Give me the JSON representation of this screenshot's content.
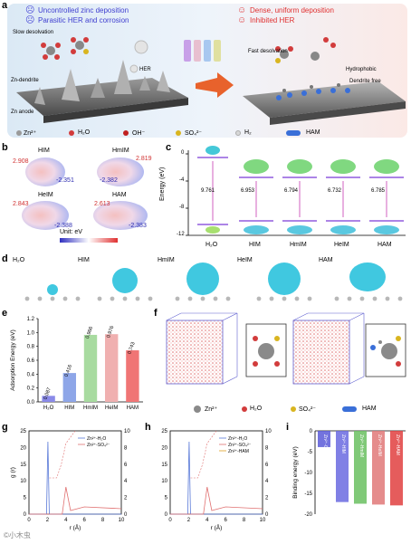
{
  "panel_labels": [
    "a",
    "b",
    "c",
    "d",
    "e",
    "f",
    "g",
    "h",
    "i"
  ],
  "panel_a": {
    "left_items": [
      "Uncontrolled zinc deposition",
      "Parasitic HER and corrosion"
    ],
    "right_items": [
      "Dense, uniform deposition",
      "Inhibited HER"
    ],
    "labels": {
      "slow": "Slow desolvation",
      "her": "HER",
      "dendrite": "Zn-dendrite",
      "anode": "Zn anode",
      "fast": "Fast desolvation",
      "hydrophobic": "Hydrophobic",
      "dendrite_free": "Dendrite free"
    },
    "legend": [
      {
        "label": "Zn²⁺",
        "color": "#9a9a9a"
      },
      {
        "label": "H₂O",
        "color": "#d23c3c"
      },
      {
        "label": "OH⁻",
        "color": "#c02020"
      },
      {
        "label": "SO₄²⁻",
        "color": "#d9b520"
      },
      {
        "label": "H₂",
        "color": "#d8d8d8"
      },
      {
        "label": "HAM",
        "color": "#3a6fd8"
      }
    ]
  },
  "panel_b": {
    "molecules": [
      {
        "name": "HIM",
        "pos": "2.908",
        "neg": "-2.351"
      },
      {
        "name": "HmIM",
        "pos": "2.819",
        "neg": "-2.382"
      },
      {
        "name": "HeIM",
        "pos": "2.843",
        "neg": "-2.388"
      },
      {
        "name": "HAM",
        "pos": "2.613",
        "neg": "-2.383"
      }
    ],
    "unit": "Unit: eV"
  },
  "panel_c": {
    "ylabel": "Energy (eV)",
    "yticks": [
      "0",
      "-4",
      "-8",
      "-12"
    ],
    "molecules": [
      "H₂O",
      "HIM",
      "HmIM",
      "HeIM",
      "HAM"
    ],
    "gaps": [
      "9.761",
      "6.953",
      "6.794",
      "6.732",
      "6.785"
    ]
  },
  "panel_d": {
    "molecules": [
      "H₂O",
      "HIM",
      "HmIM",
      "HeIM",
      "HAM"
    ]
  },
  "chart_e": {
    "type": "bar",
    "categories": [
      "H₂O",
      "HIM",
      "HmIM",
      "HeIM",
      "HAM"
    ],
    "values": [
      0.087,
      0.416,
      0.966,
      0.976,
      0.743
    ],
    "value_labels": [
      "0.087",
      "0.416",
      "0.966",
      "0.976",
      "0.743"
    ],
    "colors": [
      "#8a8ae8",
      "#8ea6e8",
      "#a8dba0",
      "#f0b0b0",
      "#f07575"
    ],
    "ylabel": "Adsorption Energy (eV)",
    "ylim": [
      0,
      1.2
    ],
    "ytick_labels": [
      "0.0",
      "0.2",
      "0.4",
      "0.6",
      "0.8",
      "1.0",
      "1.2"
    ]
  },
  "panel_f": {
    "legend": [
      "Zn²⁺",
      "H₂O",
      "SO₄²⁻",
      "HAM"
    ]
  },
  "chart_g": {
    "type": "line",
    "ylabel": "g (r)",
    "xlabel": "r (Å)",
    "xticks": [
      "0",
      "2",
      "4",
      "6",
      "8",
      "10"
    ],
    "yticks": [
      "0",
      "5",
      "10",
      "15",
      "20",
      "25"
    ],
    "y2ticks": [
      "0",
      "2",
      "4",
      "6",
      "8",
      "10"
    ],
    "legend": [
      "Zn²⁺-H₂O",
      "Zn²⁺-SO₄²⁻"
    ]
  },
  "chart_h": {
    "type": "line",
    "xlabel": "r (Å)",
    "xticks": [
      "0",
      "2",
      "4",
      "6",
      "8",
      "10"
    ],
    "yticks": [
      "0",
      "5",
      "10",
      "15",
      "20",
      "25"
    ],
    "y2ticks": [
      "0",
      "2",
      "4",
      "6",
      "8",
      "10"
    ],
    "legend": [
      "Zn²⁺-H₂O",
      "Zn²⁺-SO₄²⁻",
      "Zn²⁺-HAM"
    ]
  },
  "chart_i": {
    "type": "bar",
    "ylabel": "Binding energy (eV)",
    "yticks": [
      "0",
      "-5",
      "-10",
      "-15",
      "-20"
    ],
    "ylim": [
      -20,
      0
    ],
    "categories": [
      "Zn²⁺-OH",
      "Zn²⁺-HIM",
      "Zn²⁺-HmIM",
      "Zn²⁺-HeIM",
      "Zn²⁺-HAM"
    ],
    "values": [
      -3.9,
      -17.1,
      -17.5,
      -17.7,
      -17.9
    ],
    "colors": [
      "#5a5ad8",
      "#6a6ae0",
      "#6ac060",
      "#e07878",
      "#e04040"
    ]
  },
  "watermark": "©小木虫"
}
